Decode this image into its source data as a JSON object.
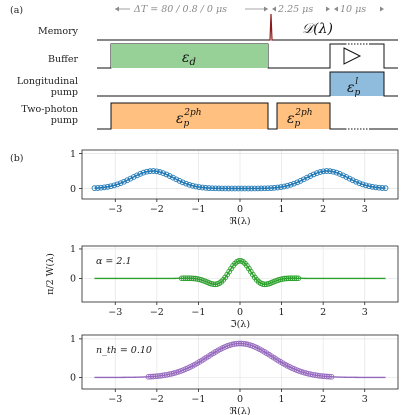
{
  "panel_a": {
    "label": "(a)",
    "timing": {
      "t1": "ΔT = 80 / 0.8 / 0 μs",
      "t2": "2.25 μs",
      "t3": "10 μs"
    },
    "rows": [
      {
        "label_lines": [
          "Memory"
        ]
      },
      {
        "label_lines": [
          "Buffer"
        ]
      },
      {
        "label_lines": [
          "Longitudinal",
          "pump"
        ]
      },
      {
        "label_lines": [
          "Two-photon",
          "pump"
        ]
      }
    ],
    "blocks": {
      "memory": "𝒟(λ)",
      "buffer": "ε_d",
      "long": "ε_p^l",
      "tp1": "ε_p^{2ph}",
      "tp2": "ε_p^{2ph}"
    },
    "colors": {
      "green": "#98d198",
      "blue": "#8fbcdc",
      "orange": "#ffc080",
      "memory_peak": "#8b1a1a"
    }
  },
  "panel_b": {
    "label": "(b)"
  },
  "chart_data": [
    {
      "type": "scatter",
      "xlabel": "ℜ(λ)",
      "ylabel": "",
      "xlim": [
        -3.8,
        3.8
      ],
      "ylim": [
        -0.3,
        1.1
      ],
      "xticks": [
        -3,
        -2,
        -1,
        0,
        1,
        2,
        3
      ],
      "yticks": [
        0,
        1
      ],
      "annotation": "",
      "color": "#1f77b4",
      "curve": {
        "kind": "double_gauss",
        "centers": [
          -2.1,
          2.1
        ],
        "sigma": 0.5,
        "amplitude": 0.5
      },
      "points": {
        "x_range": [
          -3.5,
          3.5
        ],
        "count": 90
      }
    },
    {
      "type": "scatter",
      "xlabel": "ℑ(λ)",
      "ylabel": "π/2 W(λ)",
      "xlim": [
        -3.8,
        3.8
      ],
      "ylim": [
        -0.8,
        1.1
      ],
      "xticks": [
        -3,
        -2,
        -1,
        0,
        1,
        2,
        3
      ],
      "yticks": [
        0,
        1
      ],
      "annotation": "α = 2.1",
      "color": "#2ca02c",
      "curve": {
        "kind": "fringes",
        "amplitude": 0.6,
        "sigma": 0.45,
        "frequency": 4.2
      },
      "points": {
        "x_range": [
          -1.4,
          1.4
        ],
        "count": 60
      }
    },
    {
      "type": "scatter",
      "xlabel": "ℜ(λ)",
      "ylabel": "",
      "xlim": [
        -3.8,
        3.8
      ],
      "ylim": [
        -0.3,
        1.1
      ],
      "xticks": [
        -3,
        -2,
        -1,
        0,
        1,
        2,
        3
      ],
      "yticks": [
        0,
        1
      ],
      "annotation": "n_th = 0.10",
      "color": "#9467bd",
      "curve": {
        "kind": "gauss",
        "center": 0,
        "sigma": 0.78,
        "amplitude": 0.88
      },
      "points": {
        "x_range": [
          -2.2,
          2.2
        ],
        "count": 80
      }
    }
  ]
}
